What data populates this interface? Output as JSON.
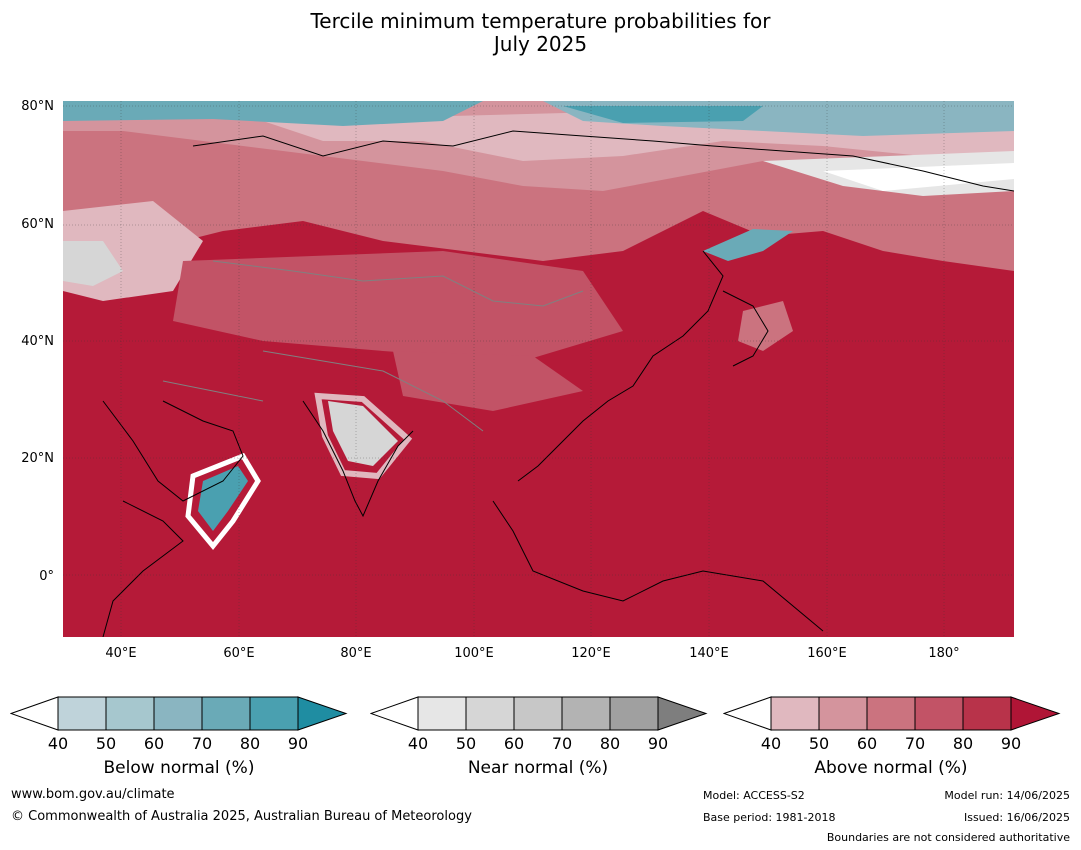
{
  "title": {
    "line1": "Tercile minimum temperature probabilities for",
    "line2": "July 2025"
  },
  "map": {
    "type": "choropleth-probability",
    "region": "Asia",
    "lat_labels": [
      "80°N",
      "60°N",
      "40°N",
      "20°N",
      "0°"
    ],
    "lon_labels": [
      "40°E",
      "60°E",
      "80°E",
      "100°E",
      "120°E",
      "140°E",
      "160°E",
      "180°"
    ],
    "extent": {
      "lon": [
        30,
        192
      ],
      "lat": [
        -10,
        80
      ]
    },
    "dominant_category": "Above normal",
    "colors": {
      "land_base": "#b51a38",
      "ocean_base": "#b51a38",
      "coastline": "#000000",
      "borders": "#808080"
    }
  },
  "legends": [
    {
      "label": "Below normal (%)",
      "ticks": [
        "40",
        "50",
        "60",
        "70",
        "80",
        "90"
      ],
      "colors": [
        "#ffffff",
        "#bfd3da",
        "#a6c7ce",
        "#8ab5c1",
        "#6aaab7",
        "#4aa0b0",
        "#1f8da2"
      ]
    },
    {
      "label": "Near normal (%)",
      "ticks": [
        "40",
        "50",
        "60",
        "70",
        "80",
        "90"
      ],
      "colors": [
        "#ffffff",
        "#e6e6e6",
        "#d6d6d6",
        "#c7c7c7",
        "#b3b3b3",
        "#a0a0a0",
        "#7e7e7e"
      ]
    },
    {
      "label": "Above normal (%)",
      "ticks": [
        "40",
        "50",
        "60",
        "70",
        "80",
        "90"
      ],
      "colors": [
        "#ffffff",
        "#e0b8bf",
        "#d4949d",
        "#cb737f",
        "#c25366",
        "#b8334a",
        "#b01536"
      ]
    }
  ],
  "footer": {
    "website": "www.bom.gov.au/climate",
    "copyright": "© Commonwealth of Australia 2025, Australian Bureau of Meteorology",
    "model": "Model: ACCESS-S2",
    "base_period": "Base period: 1981-2018",
    "model_run": "Model run: 14/06/2025",
    "issued": "Issued: 16/06/2025",
    "disclaimer": "Boundaries are not considered authoritative"
  }
}
